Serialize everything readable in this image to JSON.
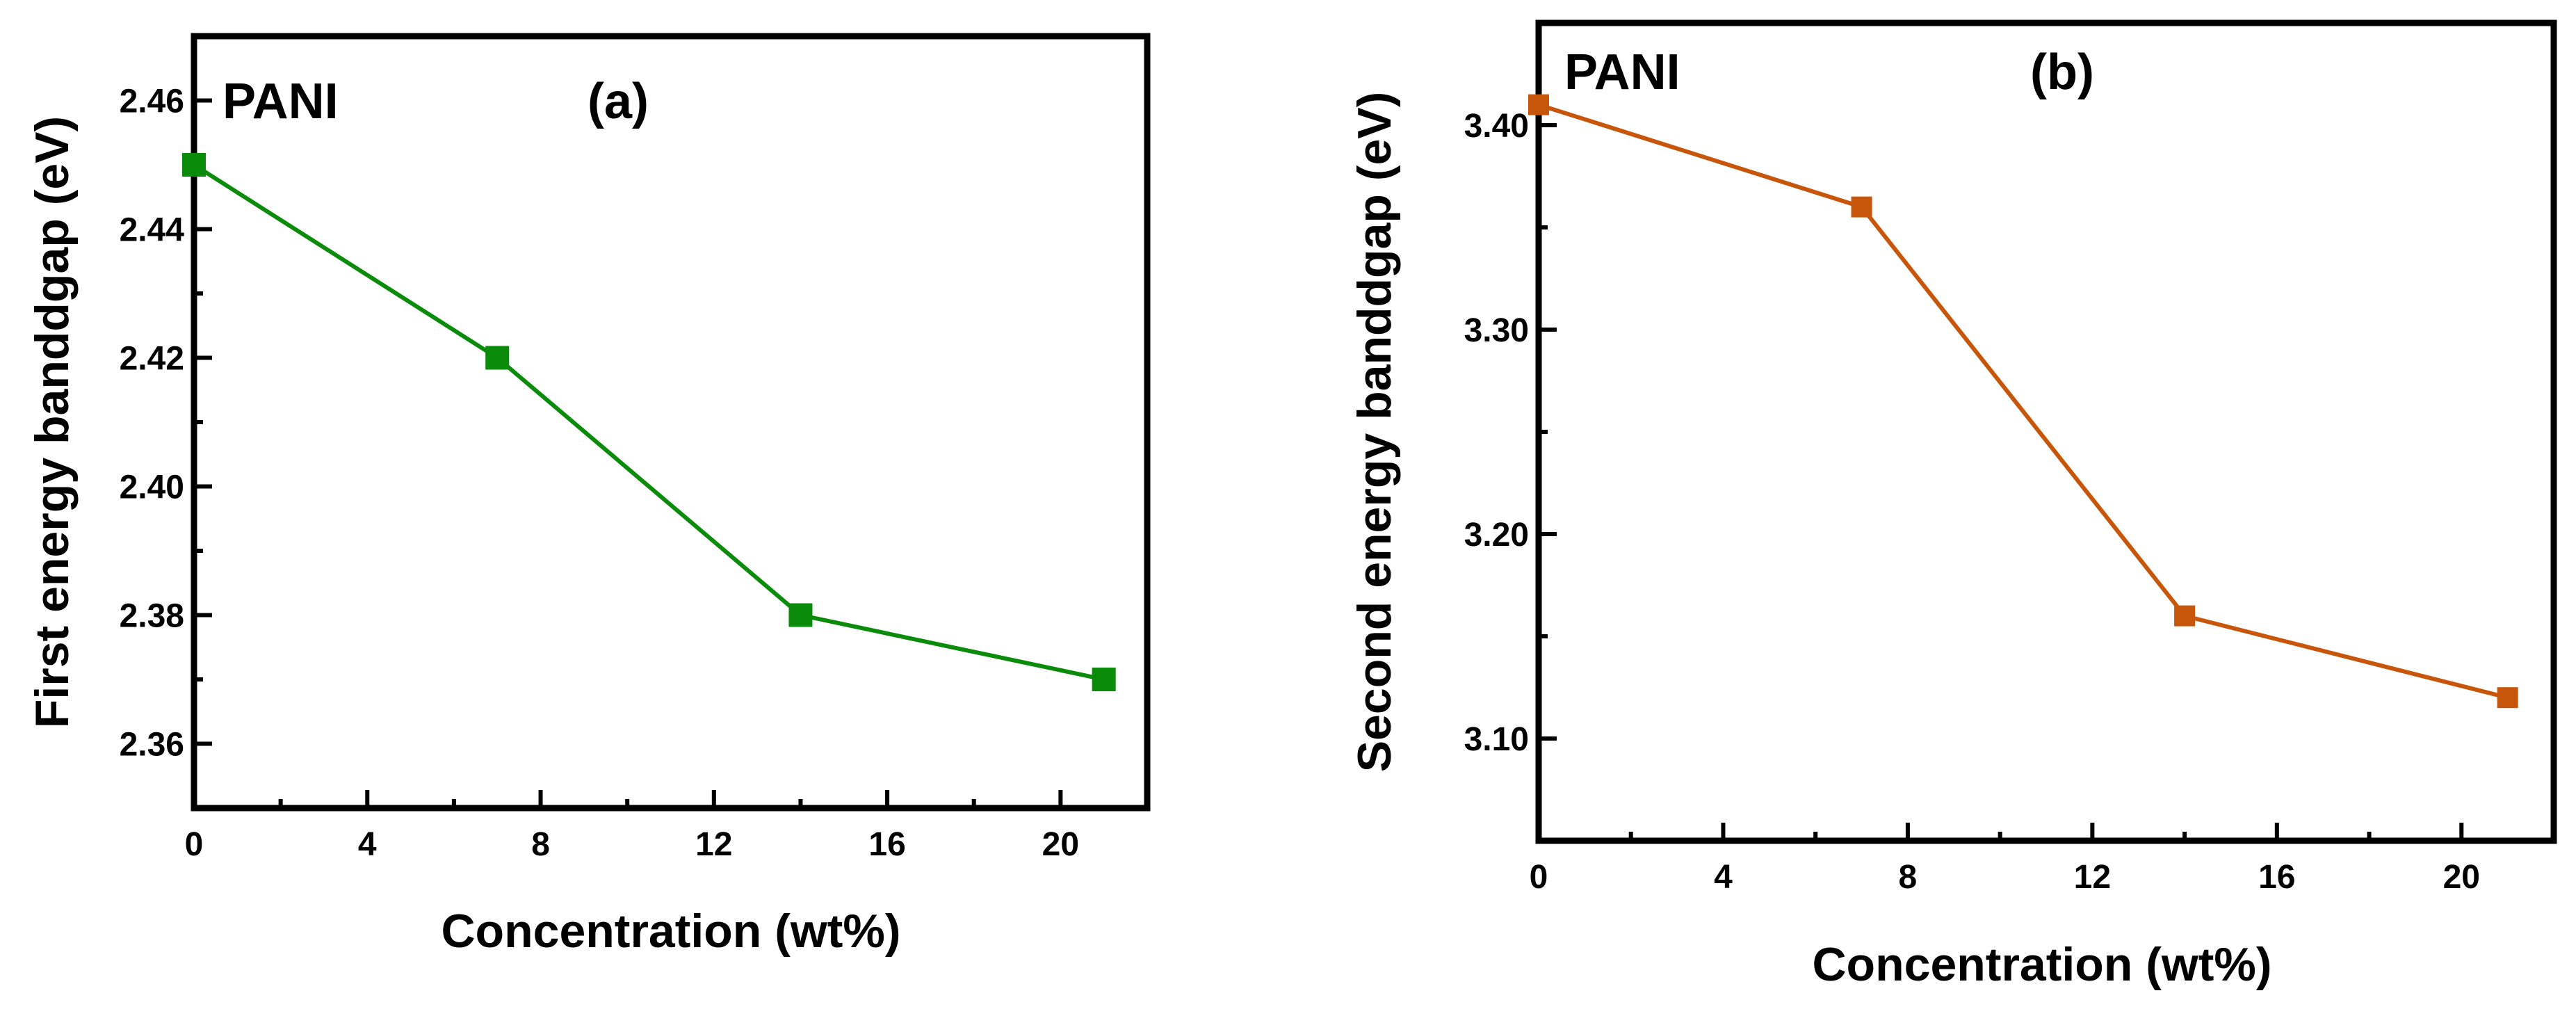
{
  "chart_data": [
    {
      "type": "line",
      "panel_label": "(a)",
      "annotation": "PANI",
      "x": [
        0,
        7,
        14,
        21
      ],
      "values": [
        2.45,
        2.42,
        2.38,
        2.37
      ],
      "xlabel": "Concentration (wt%)",
      "ylabel": "First energy banddgap (eV)",
      "xlim": [
        0,
        22
      ],
      "ylim": [
        2.35,
        2.47
      ],
      "xticks": [
        0,
        4,
        8,
        12,
        16,
        20
      ],
      "xtick_labels": [
        "0",
        "4",
        "8",
        "12",
        "16",
        "20"
      ],
      "yticks": [
        2.36,
        2.38,
        2.4,
        2.42,
        2.44,
        2.46
      ],
      "ytick_labels": [
        "2.36",
        "2.38",
        "2.40",
        "2.42",
        "2.44",
        "2.46"
      ],
      "marker": "square",
      "color": "#0a8c0a",
      "grid": false
    },
    {
      "type": "line",
      "panel_label": "(b)",
      "annotation": "PANI",
      "x": [
        0,
        7,
        14,
        21
      ],
      "values": [
        3.41,
        3.36,
        3.16,
        3.12
      ],
      "xlabel": "Concentration (wt%)",
      "ylabel": "Second energy banddgap (eV)",
      "xlim": [
        0,
        22
      ],
      "ylim": [
        3.05,
        3.45
      ],
      "xticks": [
        0,
        4,
        8,
        12,
        16,
        20
      ],
      "xtick_labels": [
        "0",
        "4",
        "8",
        "12",
        "16",
        "20"
      ],
      "yticks": [
        3.1,
        3.2,
        3.3,
        3.4
      ],
      "ytick_labels": [
        "3.10",
        "3.20",
        "3.30",
        "3.40"
      ],
      "marker": "square",
      "color": "#c8560a",
      "grid": false
    }
  ]
}
